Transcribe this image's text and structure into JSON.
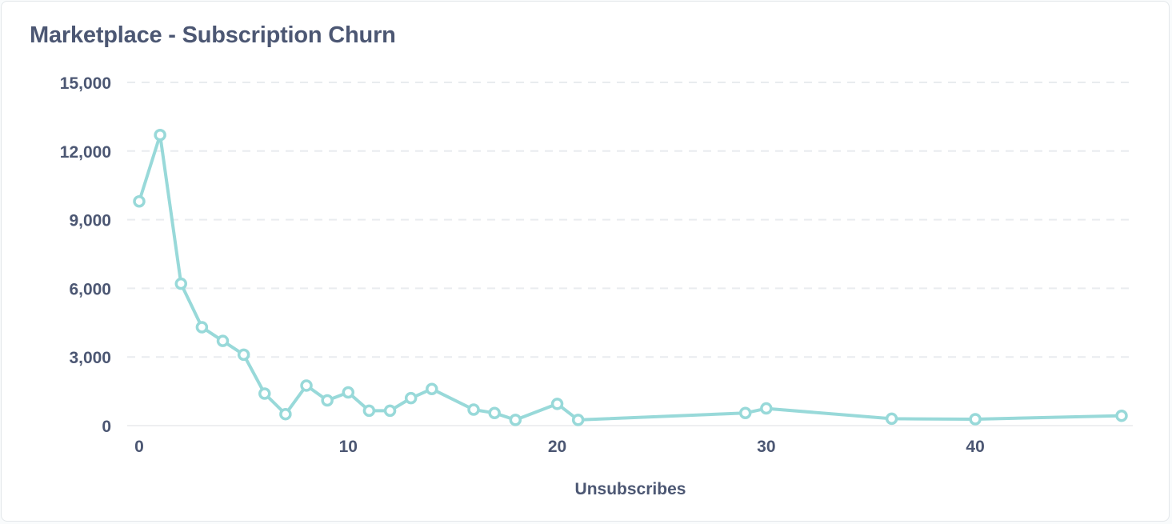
{
  "card": {
    "title": "Marketplace - Subscription Churn"
  },
  "chart_data": {
    "type": "line",
    "title": "Marketplace - Subscription Churn",
    "xlabel": "Unsubscribes",
    "ylabel": "",
    "xlim": [
      0,
      47
    ],
    "ylim": [
      0,
      15000
    ],
    "x_ticks": [
      0,
      10,
      20,
      30,
      40
    ],
    "x_tick_labels": [
      "0",
      "10",
      "20",
      "30",
      "40"
    ],
    "y_ticks": [
      0,
      3000,
      6000,
      9000,
      12000,
      15000
    ],
    "y_tick_labels": [
      "0",
      "3,000",
      "6,000",
      "9,000",
      "12,000",
      "15,000"
    ],
    "grid": "horizontal dashed",
    "line_color": "#98d9d9",
    "grid_color": "#e9ecef",
    "axis_color": "#eeeff1",
    "series": [
      {
        "x": [
          0,
          1,
          2,
          3,
          4,
          5,
          6,
          7,
          8,
          9,
          10,
          11,
          12,
          13,
          14,
          16,
          17,
          18,
          20,
          21,
          29,
          30,
          36,
          40,
          47
        ],
        "values": [
          9800,
          12700,
          6200,
          4300,
          3700,
          3100,
          1400,
          500,
          1750,
          1100,
          1450,
          650,
          650,
          1200,
          1600,
          700,
          550,
          250,
          950,
          250,
          550,
          750,
          300,
          280,
          430
        ]
      }
    ]
  }
}
